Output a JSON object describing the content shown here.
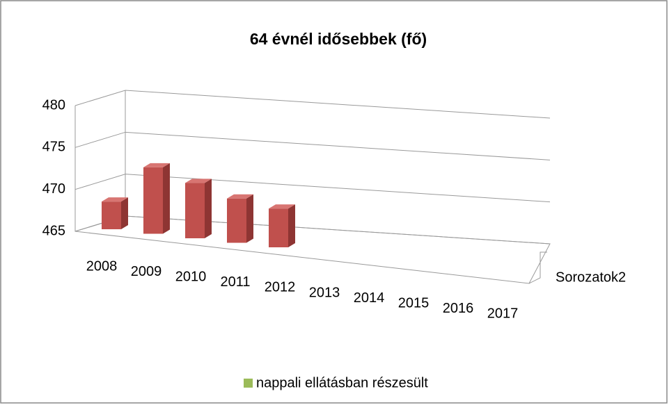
{
  "chart_data": {
    "type": "bar3d",
    "title": "64 évnél idősebbek (fő)",
    "categories": [
      "2008",
      "2009",
      "2010",
      "2011",
      "2012",
      "2013",
      "2014",
      "2015",
      "2016",
      "2017"
    ],
    "series": [
      {
        "name": "Sorozatok2",
        "color": "#c0504d",
        "values": [
          470,
          477,
          475,
          473,
          472,
          null,
          null,
          null,
          null,
          null
        ]
      }
    ],
    "legend": {
      "name": "nappali ellátásban részesült",
      "color": "#9bbb59"
    },
    "ylim": [
      465,
      480
    ],
    "yticks": [
      465,
      470,
      475,
      480
    ],
    "grid": true
  }
}
